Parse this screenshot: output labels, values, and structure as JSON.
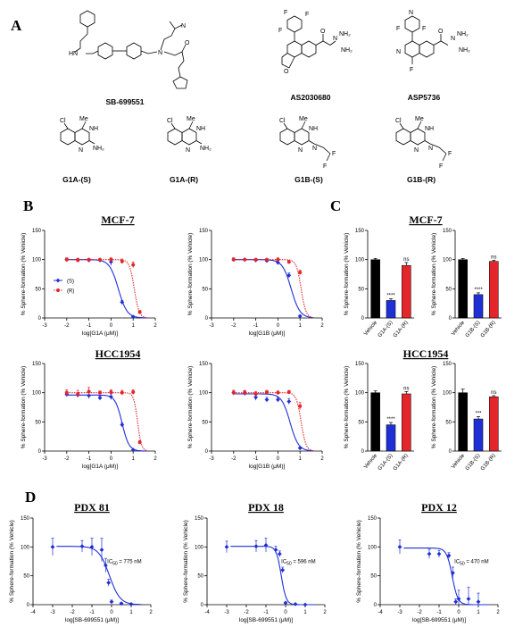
{
  "panels": {
    "A": "A",
    "B": "B",
    "C": "C",
    "D": "D"
  },
  "compounds": {
    "sb": "SB-699551",
    "as": "AS2030680",
    "asp": "ASP5736",
    "g1as": "G1A-(S)",
    "g1ar": "G1A-(R)",
    "g1bs": "G1B-(S)",
    "g1br": "G1B-(R)"
  },
  "colors": {
    "s_series": "#1f2fd6",
    "r_series": "#e3262b",
    "vehicle": "#000000"
  },
  "section_titles": {
    "mcf7": "MCF-7",
    "hcc": "HCC1954"
  },
  "chart_data": [
    {
      "id": "b-mcf7-g1a",
      "type": "scatter",
      "title": "MCF-7",
      "xlabel": "log[G1A (μM)]",
      "ylabel": "% Sphere-formation (% Vehicle)",
      "xlim": [
        -3,
        2
      ],
      "ylim": [
        0,
        150
      ],
      "xticks": [
        -3,
        -2,
        -1,
        0,
        1,
        2
      ],
      "yticks": [
        0,
        50,
        100,
        150
      ],
      "legend": {
        "position": "left",
        "entries": [
          "(S)",
          "(R)"
        ]
      },
      "series": [
        {
          "name": "(S)",
          "x": [
            -2,
            -1.5,
            -1,
            -0.5,
            0,
            0.5,
            1
          ],
          "y": [
            100,
            100,
            99,
            99,
            96,
            27,
            2
          ],
          "err": [
            3,
            2,
            3,
            3,
            6,
            3,
            2
          ],
          "fit": {
            "top": 100,
            "bottom": 0,
            "logic50": 0.33,
            "hill": 2.2
          }
        },
        {
          "name": "(R)",
          "x": [
            -2,
            -1.5,
            -1,
            -0.5,
            0,
            0.5,
            1,
            1.3
          ],
          "y": [
            100,
            99,
            100,
            100,
            100,
            97,
            91,
            10
          ],
          "err": [
            3,
            3,
            2,
            2,
            3,
            4,
            5,
            3
          ],
          "fit": {
            "top": 100,
            "bottom": 0,
            "logic50": 1.05,
            "hill": 4
          }
        }
      ]
    },
    {
      "id": "b-mcf7-g1b",
      "type": "scatter",
      "title": "",
      "xlabel": "log[G1B (μM)]",
      "ylabel": "% Sphere-formation (% Vehicle)",
      "xlim": [
        -3,
        2
      ],
      "ylim": [
        0,
        150
      ],
      "xticks": [
        -3,
        -2,
        -1,
        0,
        1,
        2
      ],
      "yticks": [
        0,
        50,
        100,
        150
      ],
      "series": [
        {
          "name": "(S)",
          "x": [
            -2,
            -1.5,
            -1,
            -0.5,
            0,
            0.5,
            1
          ],
          "y": [
            100,
            100,
            99,
            98,
            95,
            73,
            3
          ],
          "err": [
            3,
            2,
            3,
            3,
            4,
            4,
            2
          ],
          "fit": {
            "top": 100,
            "bottom": 0,
            "logic50": 0.6,
            "hill": 2.2
          }
        },
        {
          "name": "(R)",
          "x": [
            -2,
            -1.5,
            -1,
            -0.5,
            0,
            0.5,
            1
          ],
          "y": [
            100,
            100,
            100,
            100,
            100,
            96,
            78
          ],
          "err": [
            3,
            2,
            2,
            2,
            3,
            3,
            4
          ],
          "fit": {
            "top": 100,
            "bottom": 0,
            "logic50": 1.05,
            "hill": 4
          }
        }
      ]
    },
    {
      "id": "b-hcc-g1a",
      "type": "scatter",
      "title": "HCC1954",
      "xlabel": "log[G1A (μM)]",
      "ylabel": "% Sphere-formation (% Vehicle)",
      "xlim": [
        -3,
        2
      ],
      "ylim": [
        0,
        150
      ],
      "xticks": [
        -3,
        -2,
        -1,
        0,
        1,
        2
      ],
      "yticks": [
        0,
        50,
        100,
        150
      ],
      "series": [
        {
          "name": "(S)",
          "x": [
            -2,
            -1.5,
            -1,
            -0.5,
            0,
            0.5,
            1
          ],
          "y": [
            97,
            96,
            95,
            91,
            93,
            45,
            2
          ],
          "err": [
            3,
            4,
            5,
            3,
            5,
            3,
            1
          ],
          "fit": {
            "top": 96,
            "bottom": 0,
            "logic50": 0.5,
            "hill": 2.8
          }
        },
        {
          "name": "(R)",
          "x": [
            -2,
            -1.5,
            -1,
            -0.5,
            0,
            0.5,
            1,
            1.3
          ],
          "y": [
            100,
            98,
            102,
            100,
            101,
            100,
            101,
            15
          ],
          "err": [
            5,
            6,
            7,
            3,
            4,
            4,
            4,
            3
          ],
          "fit": {
            "top": 100,
            "bottom": 0,
            "logic50": 1.2,
            "hill": 5
          }
        }
      ]
    },
    {
      "id": "b-hcc-g1b",
      "type": "scatter",
      "title": "",
      "xlabel": "log[G1B (μM)]",
      "ylabel": "% Sphere-formation (% Vehicle)",
      "xlim": [
        -3,
        2
      ],
      "ylim": [
        0,
        150
      ],
      "xticks": [
        -3,
        -2,
        -1,
        0,
        1,
        2
      ],
      "yticks": [
        0,
        50,
        100,
        150
      ],
      "series": [
        {
          "name": "(S)",
          "x": [
            -2,
            -1.5,
            -1,
            -0.5,
            0,
            0.5,
            1
          ],
          "y": [
            100,
            99,
            92,
            88,
            88,
            85,
            5
          ],
          "err": [
            4,
            4,
            5,
            4,
            4,
            5,
            2
          ],
          "fit": {
            "top": 98,
            "bottom": 0,
            "logic50": 0.55,
            "hill": 2.3
          }
        },
        {
          "name": "(R)",
          "x": [
            -2,
            -1.5,
            -1,
            -0.5,
            0,
            0.5,
            1
          ],
          "y": [
            100,
            100,
            98,
            101,
            100,
            101,
            77
          ],
          "err": [
            4,
            4,
            4,
            3,
            3,
            3,
            6
          ],
          "fit": {
            "top": 100,
            "bottom": 0,
            "logic50": 1.05,
            "hill": 4
          }
        }
      ]
    },
    {
      "id": "c-mcf7-g1a",
      "type": "bar",
      "ylabel": "% Sphere-formation (% Vehicle)",
      "categories": [
        "Vehicle",
        "G1A-(S)",
        "G1A-(R)"
      ],
      "ylim": [
        0,
        150
      ],
      "yticks": [
        0,
        50,
        100,
        150
      ],
      "values": [
        100,
        30,
        90
      ],
      "err": [
        2,
        3,
        5
      ],
      "sig": [
        "",
        "****",
        "ns"
      ]
    },
    {
      "id": "c-mcf7-g1b",
      "type": "bar",
      "ylabel": "% Sphere-formation (% Vehicle)",
      "categories": [
        "Vehicle",
        "G1B-(S)",
        "G1B-(R)"
      ],
      "ylim": [
        0,
        150
      ],
      "yticks": [
        0,
        50,
        100,
        150
      ],
      "values": [
        100,
        40,
        97
      ],
      "err": [
        2,
        3,
        2
      ],
      "sig": [
        "",
        "****",
        "ns"
      ]
    },
    {
      "id": "c-hcc-g1a",
      "type": "bar",
      "ylabel": "% Sphere-formation (% Vehicle)",
      "categories": [
        "Vehicle",
        "G1A-(S)",
        "G1A-(R)"
      ],
      "ylim": [
        0,
        150
      ],
      "yticks": [
        0,
        50,
        100,
        150
      ],
      "values": [
        100,
        45,
        98
      ],
      "err": [
        3,
        4,
        4
      ],
      "sig": [
        "",
        "****",
        "ns"
      ]
    },
    {
      "id": "c-hcc-g1b",
      "type": "bar",
      "ylabel": "% Sphere-formation (% Vehicle)",
      "categories": [
        "Vehicle",
        "G1B-(S)",
        "G1B-(R)"
      ],
      "ylim": [
        0,
        150
      ],
      "yticks": [
        0,
        50,
        100,
        150
      ],
      "values": [
        100,
        55,
        93
      ],
      "err": [
        6,
        4,
        2
      ],
      "sig": [
        "",
        "***",
        "ns"
      ]
    },
    {
      "id": "d-pdx81",
      "type": "scatter",
      "title": "PDX 81",
      "xlabel": "log[SB-699551 (μM)]",
      "ylabel": "% Sphere-formation (% Vehicle)",
      "xlim": [
        -4,
        2
      ],
      "ylim": [
        0,
        150
      ],
      "xticks": [
        -4,
        -3,
        -2,
        -1,
        0,
        1,
        2
      ],
      "yticks": [
        0,
        50,
        100,
        150
      ],
      "annotation": "IC50 = 775 nM",
      "series": [
        {
          "name": "SB-699551",
          "x": [
            -3,
            -1.5,
            -1,
            -0.5,
            -0.3,
            -0.15,
            0,
            0.5,
            1
          ],
          "y": [
            100,
            101,
            100,
            95,
            68,
            38,
            5,
            2,
            1
          ],
          "err": [
            15,
            10,
            15,
            20,
            12,
            6,
            3,
            2,
            1
          ],
          "fit": {
            "top": 101,
            "bottom": 0,
            "logic50": -0.11,
            "hill": 1.6
          }
        }
      ]
    },
    {
      "id": "d-pdx18",
      "type": "scatter",
      "title": "PDX 18",
      "xlabel": "log[SB-699551 (μM)]",
      "ylabel": "% Sphere-formation (% Vehicle)",
      "xlim": [
        -4,
        2
      ],
      "ylim": [
        0,
        150
      ],
      "xticks": [
        -4,
        -3,
        -2,
        -1,
        0,
        1,
        2
      ],
      "yticks": [
        0,
        50,
        100,
        150
      ],
      "annotation": "IC50 = 596 nM",
      "series": [
        {
          "name": "SB-699551",
          "x": [
            -3,
            -1.5,
            -1,
            -0.5,
            -0.3,
            -0.15,
            0,
            0.5,
            1
          ],
          "y": [
            100,
            101,
            103,
            95,
            88,
            60,
            3,
            1,
            0
          ],
          "err": [
            10,
            10,
            12,
            6,
            5,
            5,
            2,
            1,
            1
          ],
          "fit": {
            "top": 101,
            "bottom": 0,
            "logic50": -0.22,
            "hill": 3.5
          }
        }
      ]
    },
    {
      "id": "d-pdx12",
      "type": "scatter",
      "title": "PDX 12",
      "xlabel": "log[SB-699551 (μM)]",
      "ylabel": "% Sphere-formation (% Vehicle)",
      "xlim": [
        -4,
        2
      ],
      "ylim": [
        0,
        150
      ],
      "xticks": [
        -4,
        -3,
        -2,
        -1,
        0,
        1,
        2
      ],
      "yticks": [
        0,
        50,
        100,
        150
      ],
      "annotation": "IC50 = 470 nM",
      "series": [
        {
          "name": "SB-699551",
          "x": [
            -3,
            -1.5,
            -1,
            -0.5,
            -0.3,
            -0.15,
            0,
            0.5,
            1
          ],
          "y": [
            100,
            88,
            88,
            85,
            55,
            5,
            10,
            10,
            5
          ],
          "err": [
            12,
            8,
            6,
            5,
            10,
            5,
            15,
            20,
            15
          ],
          "fit": {
            "top": 98,
            "bottom": 0,
            "logic50": -0.33,
            "hill": 3
          }
        }
      ]
    }
  ]
}
